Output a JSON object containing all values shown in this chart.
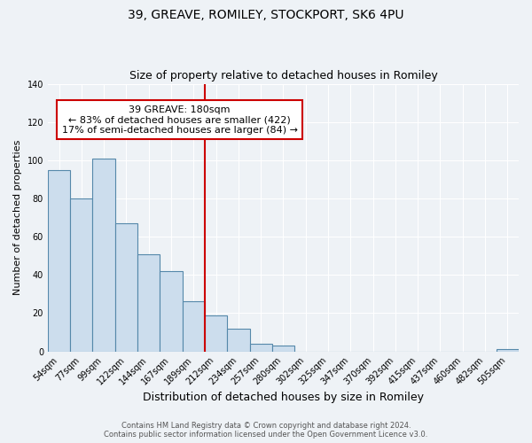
{
  "title": "39, GREAVE, ROMILEY, STOCKPORT, SK6 4PU",
  "subtitle": "Size of property relative to detached houses in Romiley",
  "xlabel": "Distribution of detached houses by size in Romiley",
  "ylabel": "Number of detached properties",
  "bar_labels": [
    "54sqm",
    "77sqm",
    "99sqm",
    "122sqm",
    "144sqm",
    "167sqm",
    "189sqm",
    "212sqm",
    "234sqm",
    "257sqm",
    "280sqm",
    "302sqm",
    "325sqm",
    "347sqm",
    "370sqm",
    "392sqm",
    "415sqm",
    "437sqm",
    "460sqm",
    "482sqm",
    "505sqm"
  ],
  "bar_values": [
    95,
    80,
    101,
    67,
    51,
    42,
    26,
    19,
    12,
    4,
    3,
    0,
    0,
    0,
    0,
    0,
    0,
    0,
    0,
    0,
    1
  ],
  "bar_color": "#ccdded",
  "bar_edge_color": "#5588aa",
  "vline_x_index": 7,
  "vline_color": "#cc0000",
  "annotation_title": "39 GREAVE: 180sqm",
  "annotation_line1": "← 83% of detached houses are smaller (422)",
  "annotation_line2": "17% of semi-detached houses are larger (84) →",
  "annotation_box_facecolor": "#ffffff",
  "annotation_box_edgecolor": "#cc0000",
  "ylim": [
    0,
    140
  ],
  "yticks": [
    0,
    20,
    40,
    60,
    80,
    100,
    120,
    140
  ],
  "bg_color": "#eef2f6",
  "grid_color": "#ffffff",
  "footer1": "Contains HM Land Registry data © Crown copyright and database right 2024.",
  "footer2": "Contains public sector information licensed under the Open Government Licence v3.0."
}
